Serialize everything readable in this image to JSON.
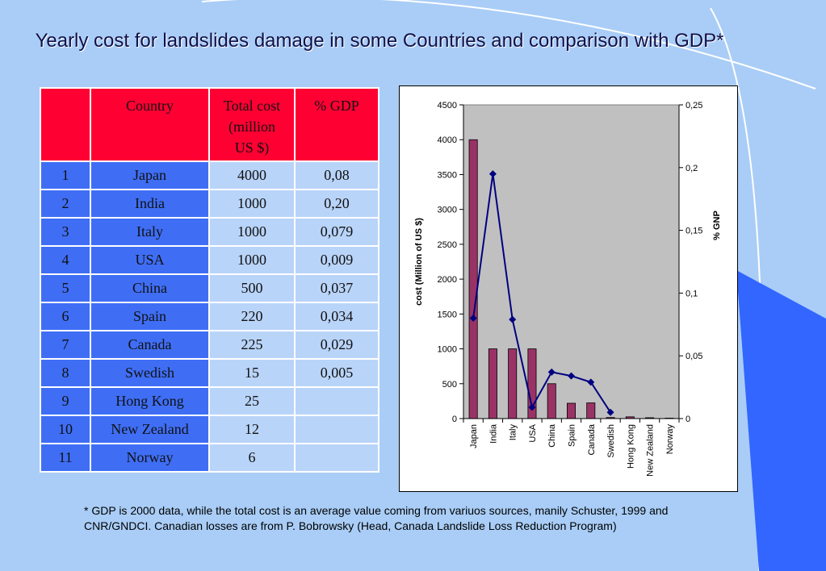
{
  "title": "Yearly cost for landslides damage in some Countries  and comparison with GDP*",
  "table": {
    "headers": [
      "",
      "Country",
      "Total cost (million US $)",
      "% GDP"
    ],
    "rows": [
      {
        "num": "1",
        "country": "Japan",
        "cost": "4000",
        "gdp": "0,08"
      },
      {
        "num": "2",
        "country": "India",
        "cost": "1000",
        "gdp": "0,20"
      },
      {
        "num": "3",
        "country": "Italy",
        "cost": "1000",
        "gdp": "0,079"
      },
      {
        "num": "4",
        "country": "USA",
        "cost": "1000",
        "gdp": "0,009"
      },
      {
        "num": "5",
        "country": "China",
        "cost": "500",
        "gdp": "0,037"
      },
      {
        "num": "6",
        "country": "Spain",
        "cost": "220",
        "gdp": "0,034"
      },
      {
        "num": "7",
        "country": "Canada",
        "cost": "225",
        "gdp": "0,029"
      },
      {
        "num": "8",
        "country": "Swedish",
        "cost": "15",
        "gdp": "0,005"
      },
      {
        "num": "9",
        "country": "Hong Kong",
        "cost": "25",
        "gdp": ""
      },
      {
        "num": "10",
        "country": "New Zealand",
        "cost": "12",
        "gdp": ""
      },
      {
        "num": "11",
        "country": "Norway",
        "cost": "6",
        "gdp": ""
      }
    ]
  },
  "footnote": "* GDP is 2000 data, while the total cost is an average value coming from variuos sources, manily Schuster, 1999 and CNR/GNDCI. Canadian losses are from P. Bobrowsky (Head, Canada Landslide Loss Reduction Program)",
  "colors": {
    "background": "#a9cdf6",
    "plot_area": "#c0c0c0",
    "bar": "#993366",
    "line": "#000080",
    "table_header": "#ff0033",
    "table_dark": "#3f6ef5",
    "table_light": "#b9d4f9",
    "deco_blue": "#3366ff"
  },
  "chart_data": {
    "type": "bar",
    "categories": [
      "Japan",
      "India",
      "Italy",
      "USA",
      "China",
      "Spain",
      "Canada",
      "Swedish",
      "Hong Kong",
      "New Zealand",
      "Norway"
    ],
    "series": [
      {
        "axis": "left",
        "type": "bar",
        "values": [
          4000,
          1000,
          1000,
          1000,
          500,
          220,
          225,
          15,
          25,
          12,
          6
        ]
      },
      {
        "axis": "right",
        "type": "line",
        "values": [
          0.08,
          0.195,
          0.079,
          0.009,
          0.037,
          0.034,
          0.029,
          0.005,
          null,
          null,
          null
        ]
      }
    ],
    "ylabel": "cost (Million of US $)",
    "ylim": [
      0,
      4500
    ],
    "yticks": [
      "0",
      "500",
      "1000",
      "1500",
      "2000",
      "2500",
      "3000",
      "3500",
      "4000",
      "4500"
    ],
    "y2label": "% GNP",
    "y2lim": [
      0,
      0.25
    ],
    "y2ticks": [
      "0",
      "0,05",
      "0,1",
      "0,15",
      "0,2",
      "0,25"
    ],
    "grid": false,
    "legend": "none"
  }
}
